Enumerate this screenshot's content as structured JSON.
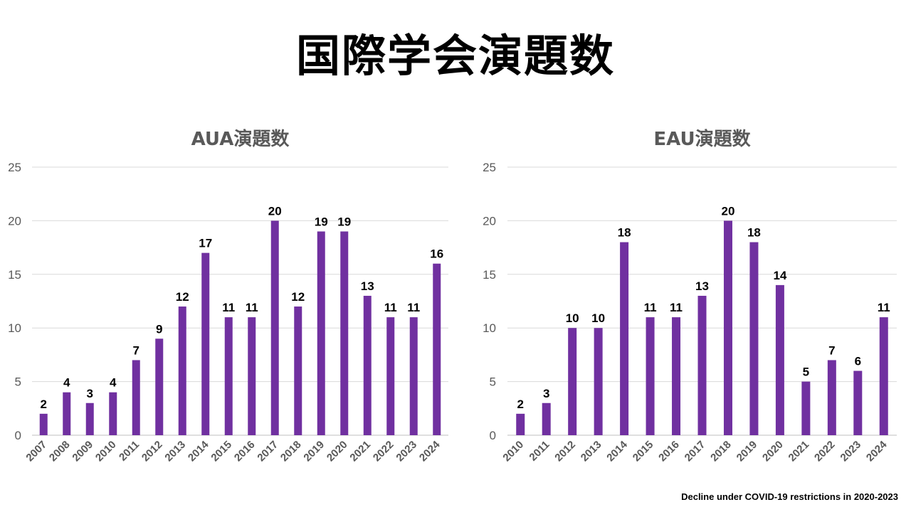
{
  "page": {
    "title": "国際学会演題数",
    "footnote": "Decline under COVID-19 restrictions  in 2020-2023"
  },
  "colors": {
    "bar": "#7030a0",
    "grid": "#d9d9d9",
    "axis_text": "#595959"
  },
  "chart_data": [
    {
      "type": "bar",
      "title": "AUA演題数",
      "xlabel": "",
      "ylabel": "",
      "categories": [
        "2007",
        "2008",
        "2009",
        "2010",
        "2011",
        "2012",
        "2013",
        "2014",
        "2015",
        "2016",
        "2017",
        "2018",
        "2019",
        "2020",
        "2021",
        "2022",
        "2023",
        "2024"
      ],
      "values": [
        2,
        4,
        3,
        4,
        7,
        9,
        12,
        17,
        11,
        11,
        20,
        12,
        19,
        19,
        13,
        11,
        11,
        16
      ],
      "ylim": [
        0,
        25
      ],
      "yticks": [
        0,
        5,
        10,
        15,
        20,
        25
      ],
      "grid": true,
      "data_labels": true
    },
    {
      "type": "bar",
      "title": "EAU演題数",
      "xlabel": "",
      "ylabel": "",
      "categories": [
        "2010",
        "2011",
        "2012",
        "2013",
        "2014",
        "2015",
        "2016",
        "2017",
        "2018",
        "2019",
        "2020",
        "2021",
        "2022",
        "2023",
        "2024"
      ],
      "values": [
        2,
        3,
        10,
        10,
        18,
        11,
        11,
        13,
        20,
        18,
        14,
        5,
        7,
        6,
        11
      ],
      "ylim": [
        0,
        25
      ],
      "yticks": [
        0,
        5,
        10,
        15,
        20,
        25
      ],
      "grid": true,
      "data_labels": true
    }
  ]
}
